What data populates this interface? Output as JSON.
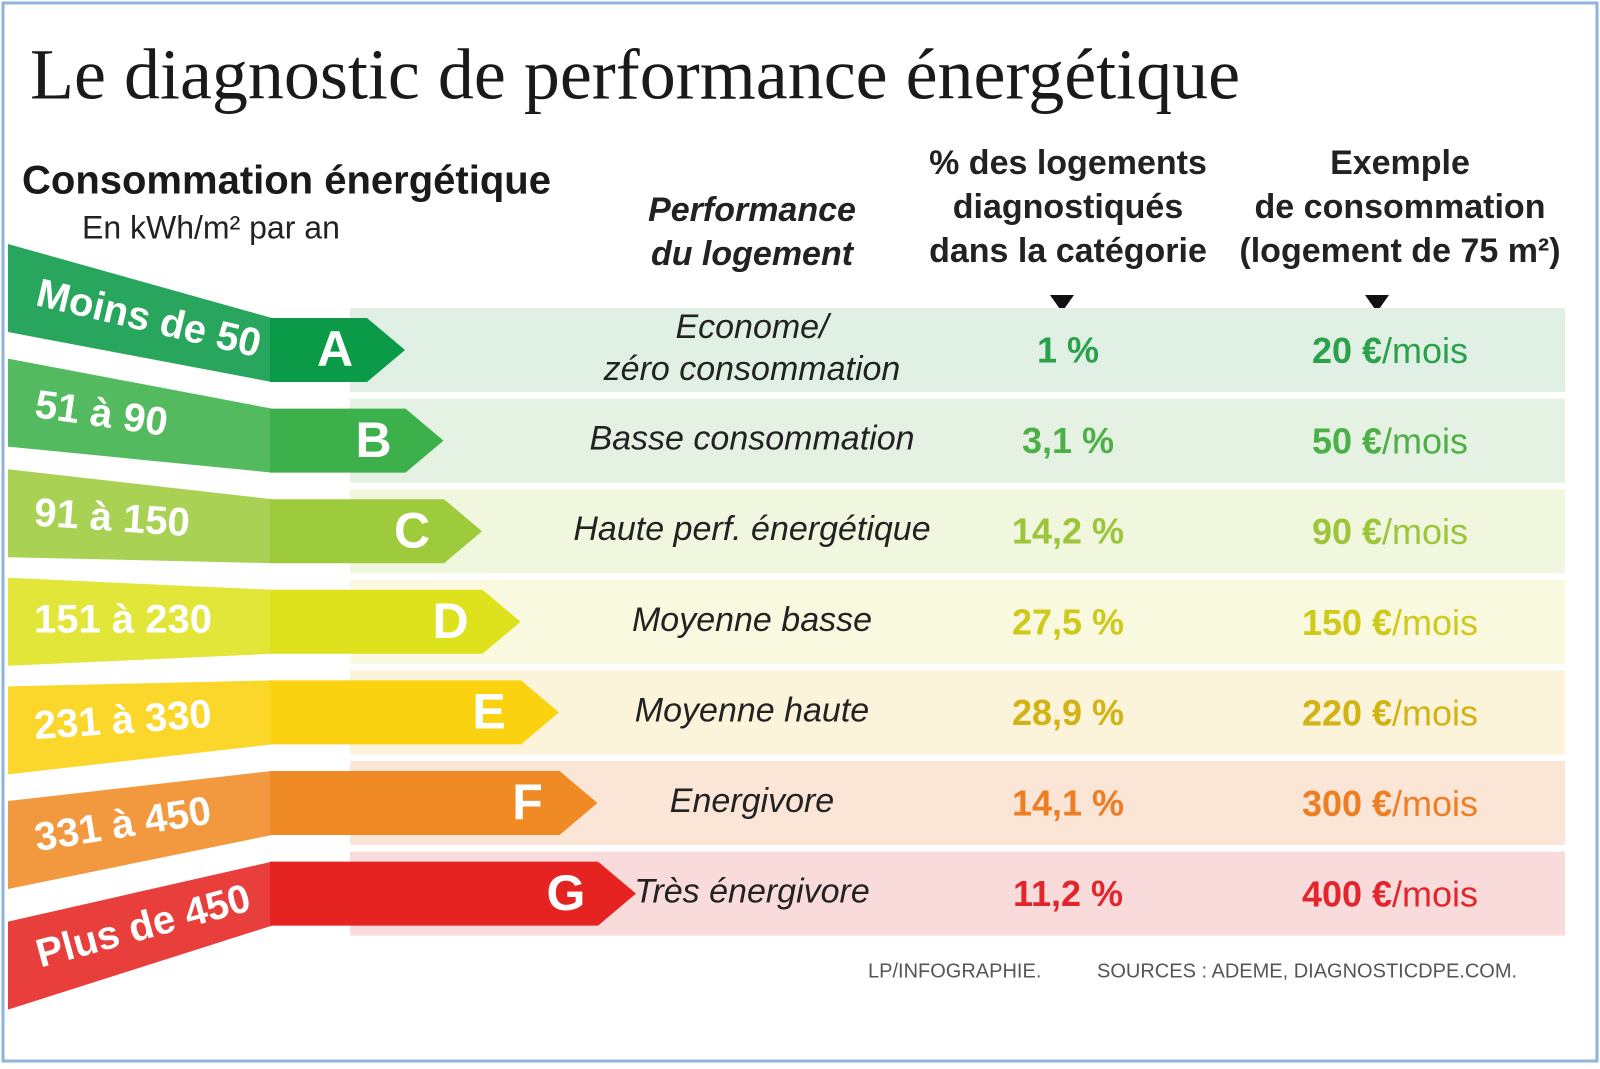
{
  "title": "Le diagnostic de performance énergétique",
  "left_header": {
    "title": "Consommation énergétique",
    "subtitle": "En kWh/m² par an"
  },
  "columns": {
    "performance": [
      "Performance",
      "du logement"
    ],
    "share": [
      "% des logements",
      "diagnostiqués",
      "dans la catégorie"
    ],
    "example": [
      "Exemple",
      "de consommation",
      "(logement de 75 m²)"
    ]
  },
  "rows": [
    {
      "range": "Moins de 50",
      "letter": "A",
      "performance": [
        "Econome/",
        "zéro consommation"
      ],
      "share": "1 %",
      "cost": "20 €",
      "unit": "/mois",
      "color": "#0a9a48"
    },
    {
      "range": "51 à 90",
      "letter": "B",
      "performance": [
        "Basse consommation"
      ],
      "share": "3,1 %",
      "cost": "50 €",
      "unit": "/mois",
      "color": "#3cb04a"
    },
    {
      "range": "91 à 150",
      "letter": "C",
      "performance": [
        "Haute  perf. énergétique"
      ],
      "share": "14,2 %",
      "cost": "90 €",
      "unit": "/mois",
      "color": "#9dcb3b"
    },
    {
      "range": "151 à 230",
      "letter": "D",
      "performance": [
        "Moyenne basse"
      ],
      "share": "27,5 %",
      "cost": "150 €",
      "unit": "/mois",
      "color": "#dde21c"
    },
    {
      "range": "231 à 330",
      "letter": "E",
      "performance": [
        "Moyenne haute"
      ],
      "share": "28,9 %",
      "cost": "220 €",
      "unit": "/mois",
      "color": "#fbd20f"
    },
    {
      "range": "331 à 450",
      "letter": "F",
      "performance": [
        "Energivore"
      ],
      "share": "14,1 %",
      "cost": "300 €",
      "unit": "/mois",
      "color": "#f08a24"
    },
    {
      "range": "Plus de 450",
      "letter": "G",
      "performance": [
        "Très énergivore"
      ],
      "share": "11,2 %",
      "cost": "400 €",
      "unit": "/mois",
      "color": "#e52421"
    }
  ],
  "footer": {
    "credit": "LP/INFOGRAPHIE.",
    "sources": "SOURCES : ADEME, DIAGNOSTICDPE.COM."
  }
}
